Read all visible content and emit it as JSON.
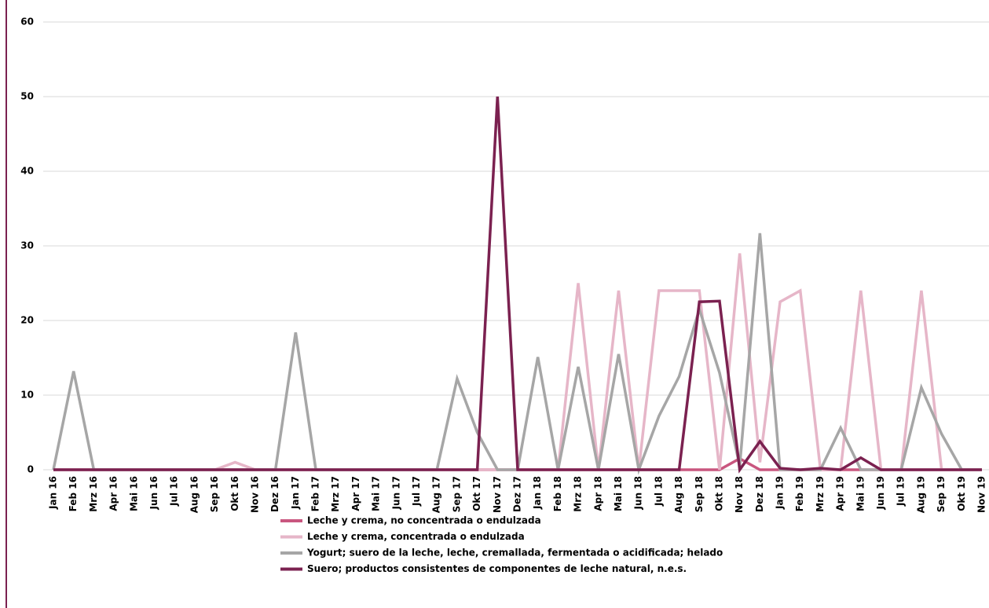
{
  "chart_data": {
    "type": "line",
    "categories": [
      "Jan 16",
      "Feb 16",
      "Mrz 16",
      "Apr 16",
      "Mai 16",
      "Jun 16",
      "Jul 16",
      "Aug 16",
      "Sep 16",
      "Okt 16",
      "Nov 16",
      "Dez 16",
      "Jan 17",
      "Feb 17",
      "Mrz 17",
      "Apr 17",
      "Mai 17",
      "Jun 17",
      "Jul 17",
      "Aug 17",
      "Sep 17",
      "Okt 17",
      "Nov 17",
      "Dez 17",
      "Jan 18",
      "Feb 18",
      "Mrz 18",
      "Apr 18",
      "Mai 18",
      "Jun 18",
      "Jul 18",
      "Aug 18",
      "Sep 18",
      "Okt 18",
      "Nov 18",
      "Dez 18",
      "Jan 19",
      "Feb 19",
      "Mrz 19",
      "Apr 19",
      "Mai 19",
      "Jun 19",
      "Jul 19",
      "Aug 19",
      "Sep 19",
      "Okt 19",
      "Nov 19"
    ],
    "series": [
      {
        "name": "Leche y crema, no concentrada o endulzada",
        "color": "#c9567f",
        "values": [
          0,
          0,
          0,
          0,
          0,
          0,
          0,
          0,
          0,
          0,
          0,
          0,
          0,
          0,
          0,
          0,
          0,
          0,
          0,
          0,
          0,
          0,
          0,
          0,
          0,
          0,
          0,
          0,
          0,
          0,
          0,
          0,
          0,
          0,
          1.5,
          0,
          0,
          0,
          0,
          0,
          0,
          0,
          0,
          0,
          0,
          0,
          0
        ]
      },
      {
        "name": "Leche y crema, concentrada o endulzada",
        "color": "#e6b6c8",
        "values": [
          0,
          0,
          0,
          0,
          0,
          0,
          0,
          0,
          0,
          1,
          0,
          0,
          0,
          0,
          0,
          0,
          0,
          0,
          0,
          0,
          0,
          0,
          0,
          0,
          0,
          0,
          25,
          0,
          24,
          0,
          24,
          24,
          24,
          0,
          29,
          1,
          22.5,
          24,
          0,
          0,
          24,
          0,
          0,
          24,
          0,
          0,
          0
        ]
      },
      {
        "name": "Yogurt; suero de la leche, leche, cremallada, fermentada o acidificada; helado",
        "color": "#a6a6a6",
        "values": [
          0,
          13.2,
          0,
          0,
          0,
          0,
          0,
          0,
          0,
          0,
          0,
          0,
          18.4,
          0,
          0,
          0,
          0,
          0,
          0,
          0,
          12.2,
          5,
          0,
          0,
          15.1,
          0,
          13.8,
          0,
          15.5,
          0,
          7.2,
          12.5,
          21.5,
          13,
          0.5,
          31.7,
          0,
          0,
          0,
          5.6,
          0,
          0,
          0,
          11,
          4.8,
          0,
          0
        ]
      },
      {
        "name": "Suero; productos consistentes de componentes de leche natural, n.e.s.",
        "color": "#7b2150",
        "values": [
          0,
          0,
          0,
          0,
          0,
          0,
          0,
          0,
          0,
          0,
          0,
          0,
          0,
          0,
          0,
          0,
          0,
          0,
          0,
          0,
          0,
          0,
          50,
          0,
          0,
          0,
          0,
          0,
          0,
          0,
          0,
          0,
          22.5,
          22.6,
          0,
          3.8,
          0.2,
          0,
          0.2,
          0,
          1.6,
          0,
          0,
          0,
          0,
          0,
          0
        ]
      }
    ],
    "ylim": [
      0,
      60
    ],
    "yticks": [
      0,
      10,
      20,
      30,
      40,
      50,
      60
    ],
    "grid": true
  }
}
